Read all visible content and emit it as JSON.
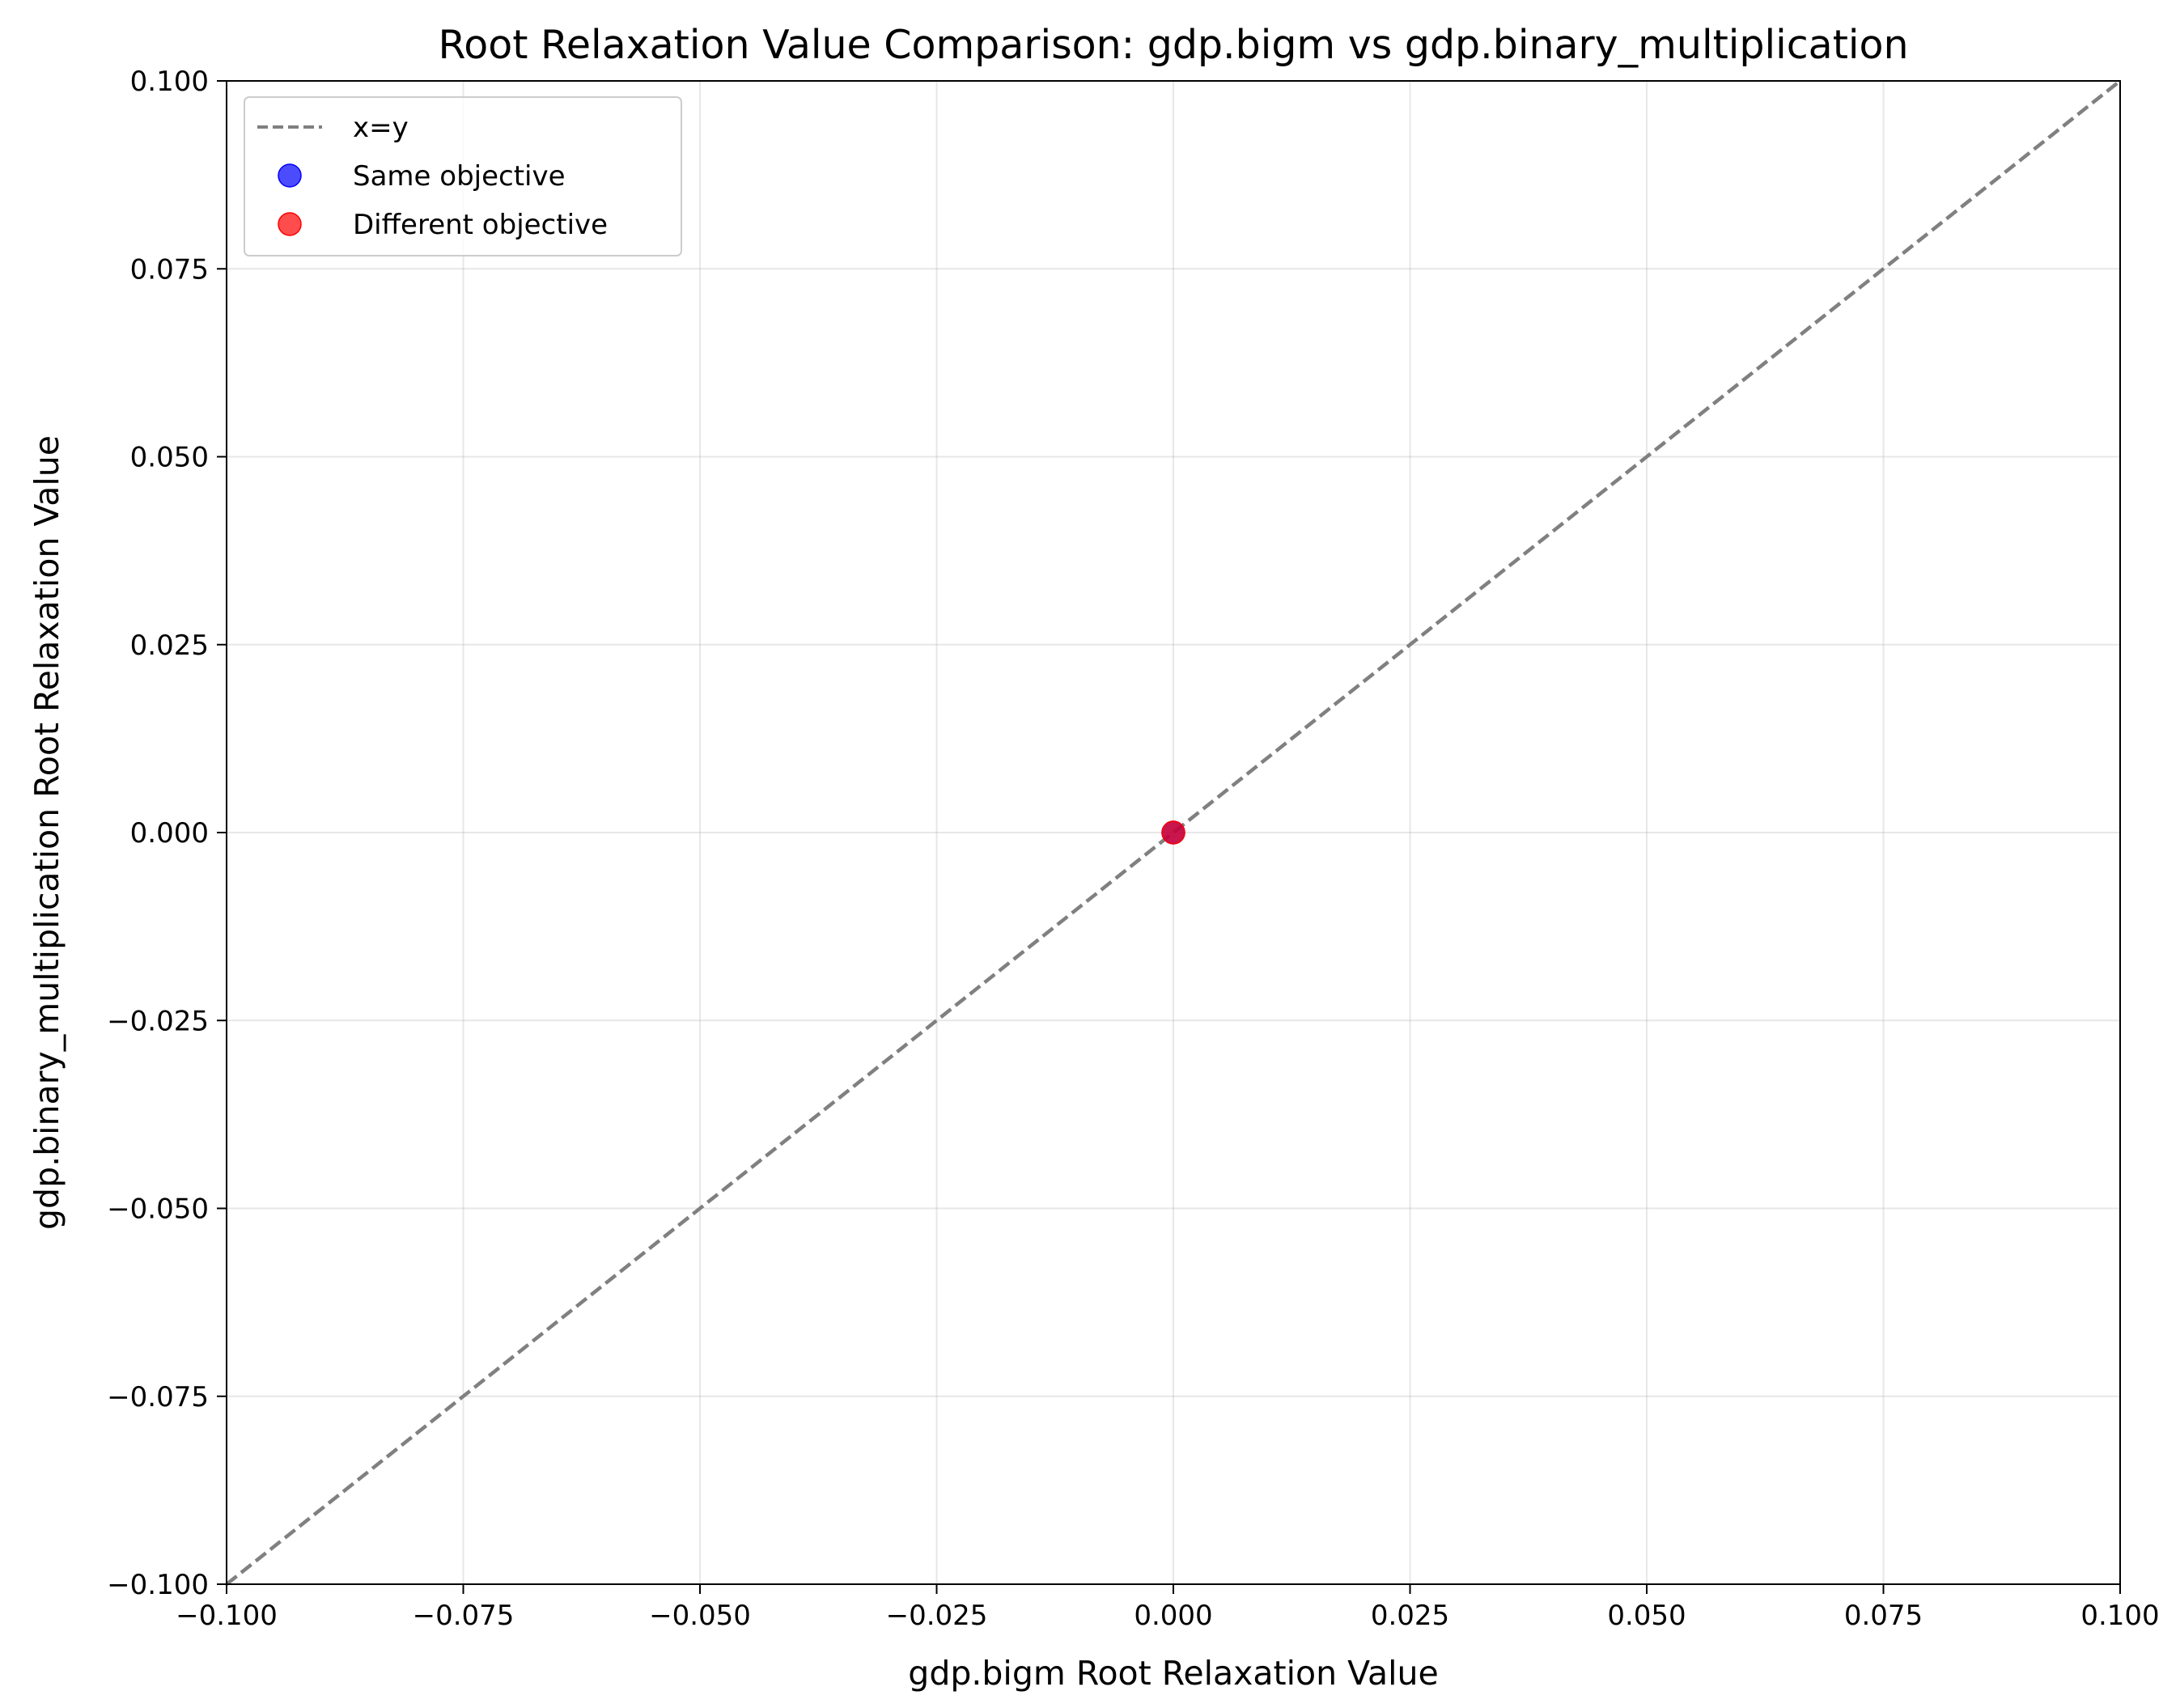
{
  "chart_data": {
    "type": "scatter",
    "title": "Root Relaxation Value Comparison: gdp.bigm vs gdp.binary_multiplication",
    "xlabel": "gdp.bigm Root Relaxation Value",
    "ylabel": "gdp.binary_multiplication Root Relaxation Value",
    "xlim": [
      -0.1,
      0.1
    ],
    "ylim": [
      -0.1,
      0.1
    ],
    "x_ticks": [
      -0.1,
      -0.075,
      -0.05,
      -0.025,
      0.0,
      0.025,
      0.05,
      0.075,
      0.1
    ],
    "y_ticks": [
      -0.1,
      -0.075,
      -0.05,
      -0.025,
      0.0,
      0.025,
      0.05,
      0.075,
      0.1
    ],
    "x_tick_labels": [
      "−0.100",
      "−0.075",
      "−0.050",
      "−0.025",
      "0.000",
      "0.025",
      "0.050",
      "0.075",
      "0.100"
    ],
    "y_tick_labels": [
      "−0.100",
      "−0.075",
      "−0.050",
      "−0.025",
      "0.000",
      "0.025",
      "0.050",
      "0.075",
      "0.100"
    ],
    "grid": true,
    "legend_position": "upper-left",
    "reference_line": {
      "name": "x=y",
      "from": [
        -0.1,
        -0.1
      ],
      "to": [
        0.1,
        0.1
      ],
      "style": "dashed",
      "color": "#808080"
    },
    "series": [
      {
        "name": "Same objective",
        "color": "#0000ff",
        "points": [
          {
            "x": 0.0,
            "y": 0.0
          }
        ]
      },
      {
        "name": "Different objective",
        "color": "#ff0000",
        "points": [
          {
            "x": 0.0,
            "y": 0.0
          }
        ]
      }
    ]
  }
}
